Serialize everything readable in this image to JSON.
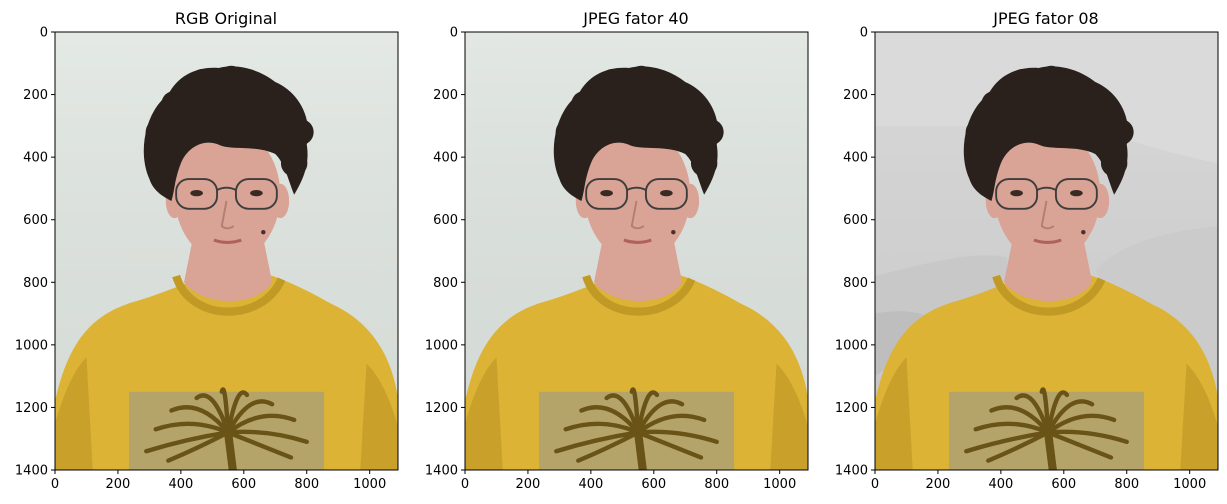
{
  "chart_data": [
    {
      "type": "image",
      "title": "RGB Original",
      "xlim": [
        0,
        1090
      ],
      "ylim": [
        1400,
        0
      ],
      "xticks": [
        0,
        200,
        400,
        600,
        800,
        1000
      ],
      "yticks": [
        0,
        200,
        400,
        600,
        800,
        1000,
        1200,
        1400
      ],
      "background": "#e1e7e2",
      "banding": false
    },
    {
      "type": "image",
      "title": "JPEG fator 40",
      "xlim": [
        0,
        1090
      ],
      "ylim": [
        1400,
        0
      ],
      "xticks": [
        0,
        200,
        400,
        600,
        800,
        1000
      ],
      "yticks": [
        0,
        200,
        400,
        600,
        800,
        1000,
        1200,
        1400
      ],
      "background": "#dfe5e1",
      "banding": false
    },
    {
      "type": "image",
      "title": "JPEG fator 08",
      "xlim": [
        0,
        1090
      ],
      "ylim": [
        1400,
        0
      ],
      "xticks": [
        0,
        200,
        400,
        600,
        800,
        1000
      ],
      "yticks": [
        0,
        200,
        400,
        600,
        800,
        1000,
        1200,
        1400
      ],
      "background": "#d6d6d6",
      "banding": true
    }
  ],
  "colors": {
    "hair": "#2a211d",
    "skin": "#d9a396",
    "shirt": "#dcb335",
    "shirt_shadow": "#c19a26",
    "print": "#b4a46a",
    "palm": "#6a5316",
    "glasses": "#3d3d3d"
  }
}
